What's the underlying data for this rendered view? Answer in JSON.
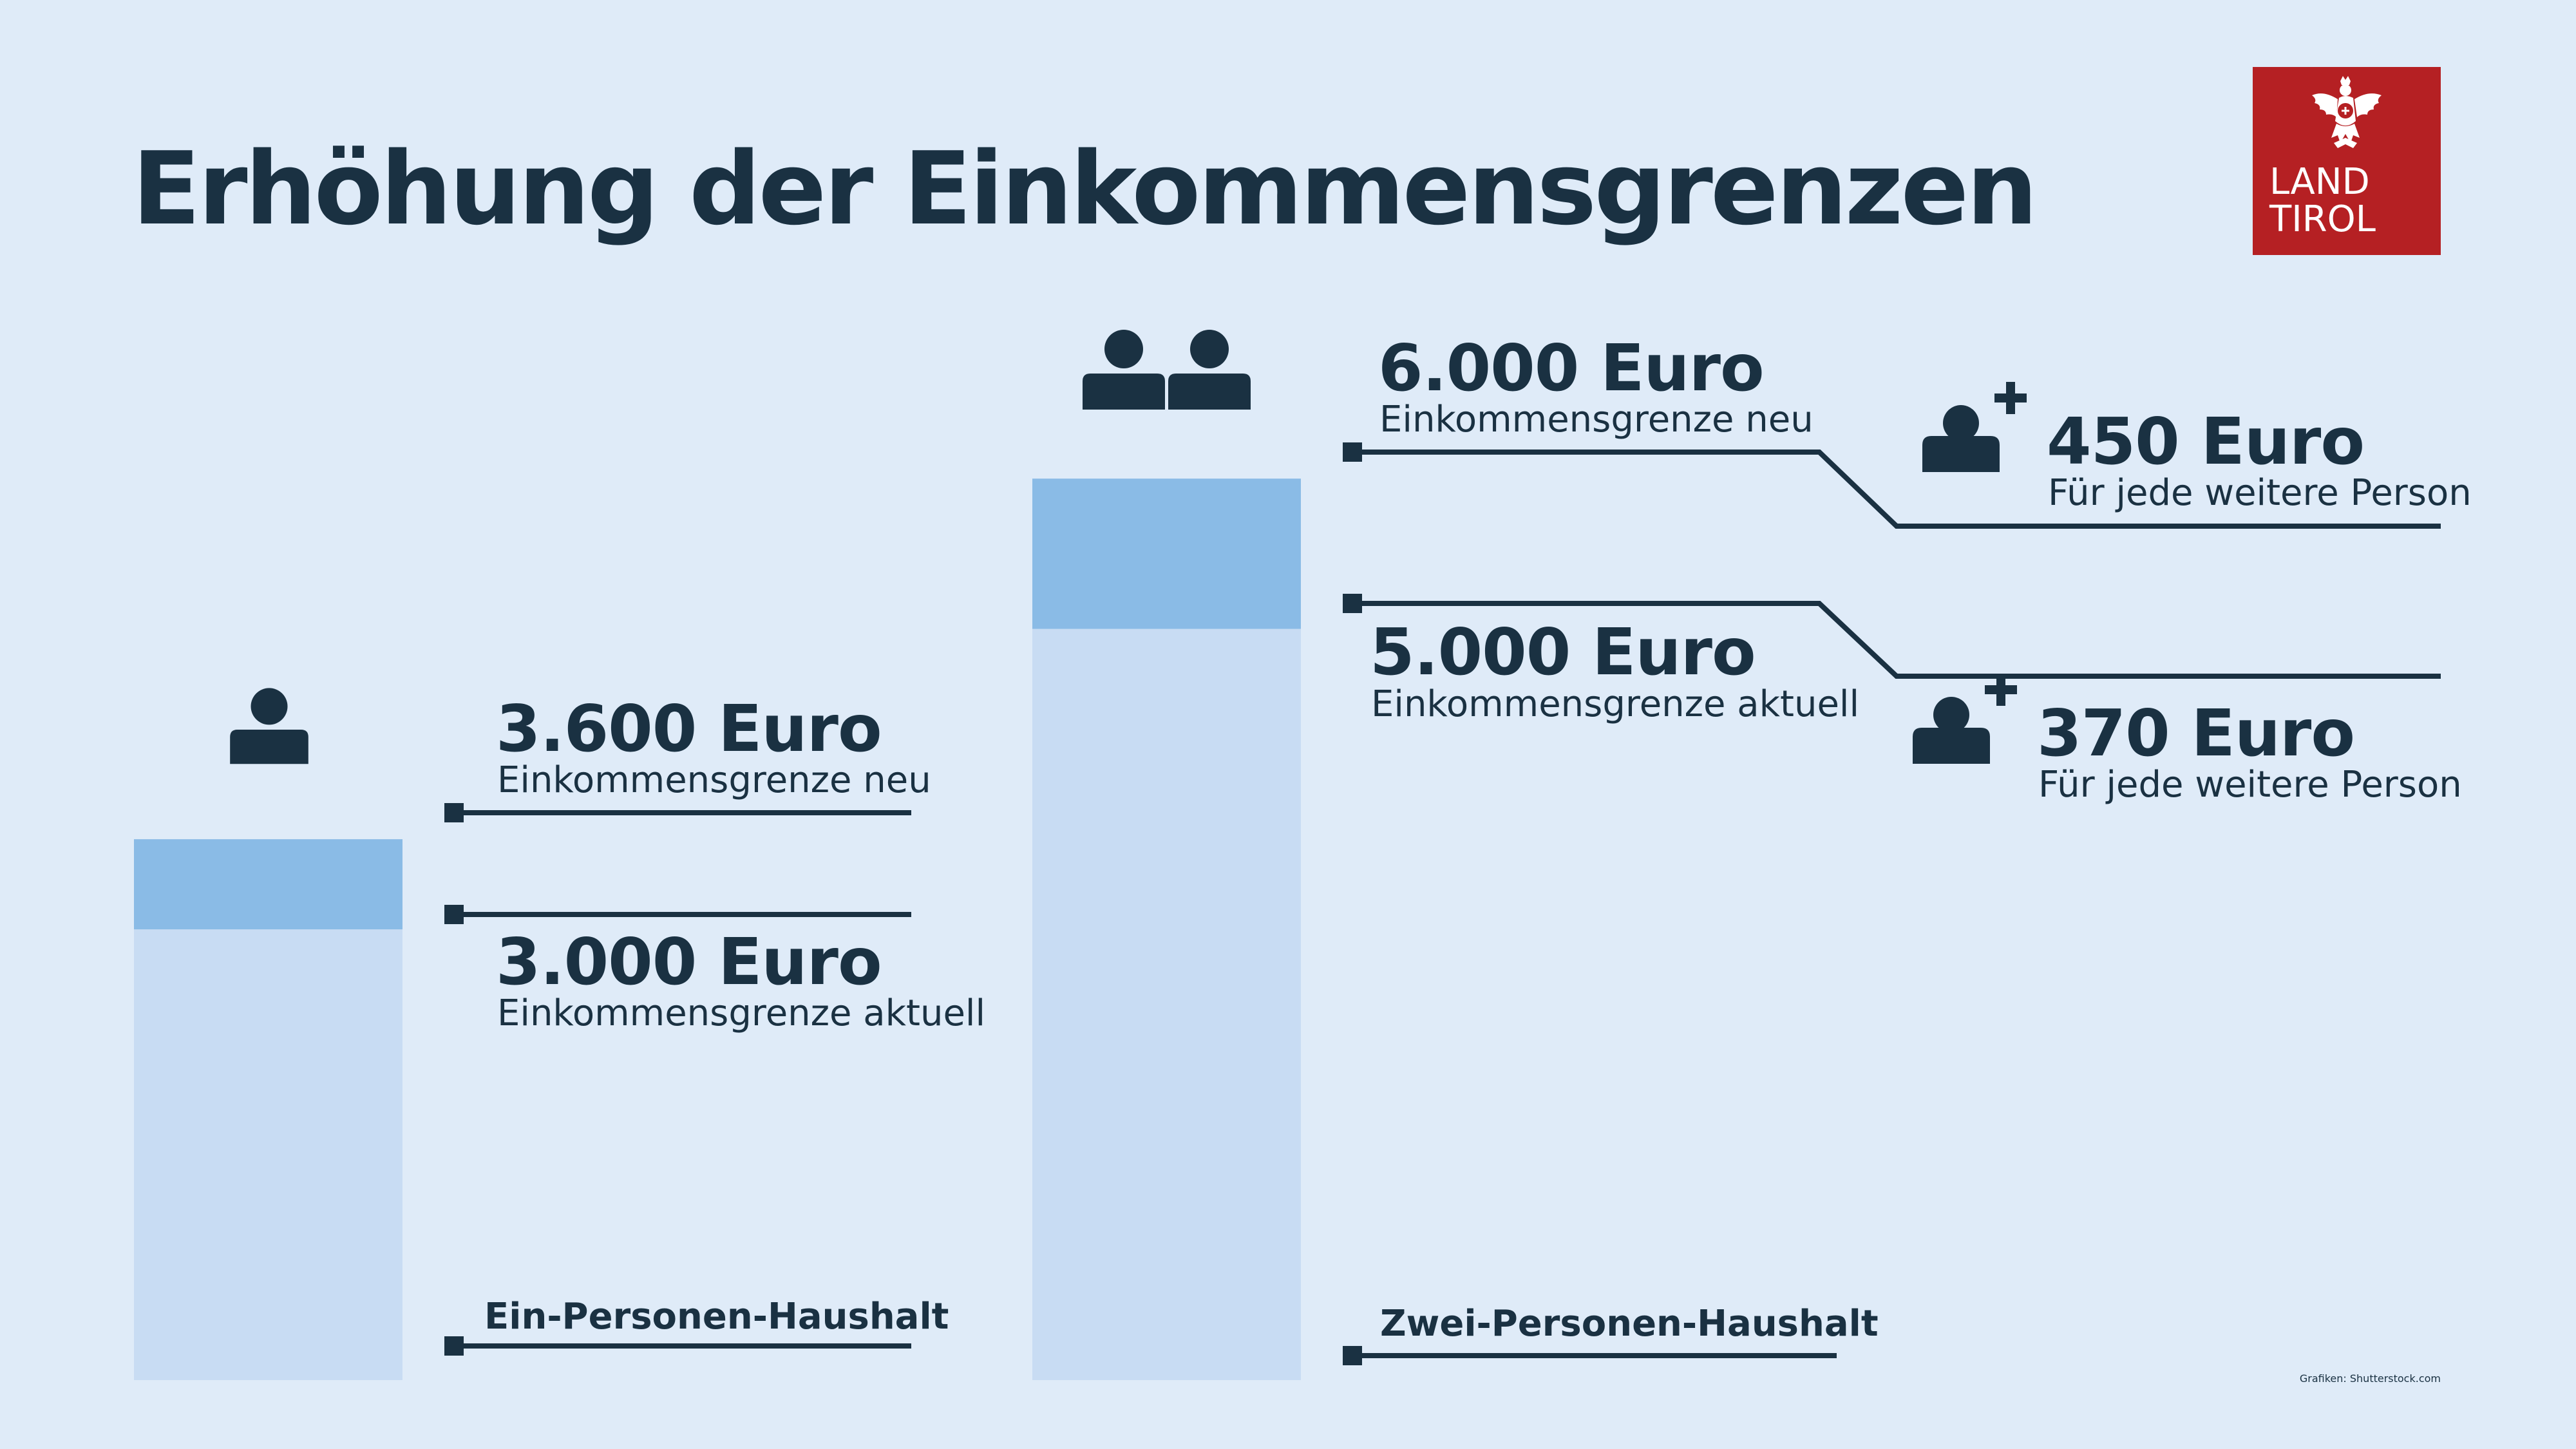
{
  "title": "Erhöhung der Einkommensgrenzen",
  "logo": {
    "text": "LAND\nTIROL",
    "icon": "tirol-eagle-icon",
    "color": "#b52023"
  },
  "credit": "Grafiken: Shutterstock.com",
  "colors": {
    "background": "#dfebf8",
    "bar_current": "#c8dcf3",
    "bar_increase": "#8abbe6",
    "text": "#1a3142"
  },
  "chart_data": {
    "type": "bar",
    "stacked": true,
    "title": "Erhöhung der Einkommensgrenzen",
    "categories": [
      "Ein-Personen-Haushalt",
      "Zwei-Personen-Haushalt"
    ],
    "series": [
      {
        "values": [
          3000,
          5000
        ]
      },
      {
        "values": [
          600,
          1000
        ]
      }
    ],
    "unit": "Euro",
    "households": [
      {
        "category": "Ein-Personen-Haushalt",
        "icon": "single-person-icon",
        "new_value": 3600,
        "new_label": "3.600 Euro",
        "new_caption": "Einkommensgrenze neu",
        "current_value": 3000,
        "current_label": "3.000 Euro",
        "current_caption": "Einkommensgrenze aktuell"
      },
      {
        "category": "Zwei-Personen-Haushalt",
        "icon": "two-persons-icon",
        "new_value": 6000,
        "new_label": "6.000 Euro",
        "new_caption": "Einkommensgrenze neu",
        "current_value": 5000,
        "current_label": "5.000 Euro",
        "current_caption": "Einkommensgrenze aktuell",
        "per_person_new": {
          "value": 450,
          "label": "450 Euro",
          "caption": "Für jede weitere Person",
          "icon": "person-plus-icon"
        },
        "per_person_current": {
          "value": 370,
          "label": "370 Euro",
          "caption": "Für jede weitere Person",
          "icon": "person-plus-icon"
        }
      }
    ],
    "ylim": [
      0,
      9300
    ],
    "grid": false,
    "legend": "none"
  }
}
